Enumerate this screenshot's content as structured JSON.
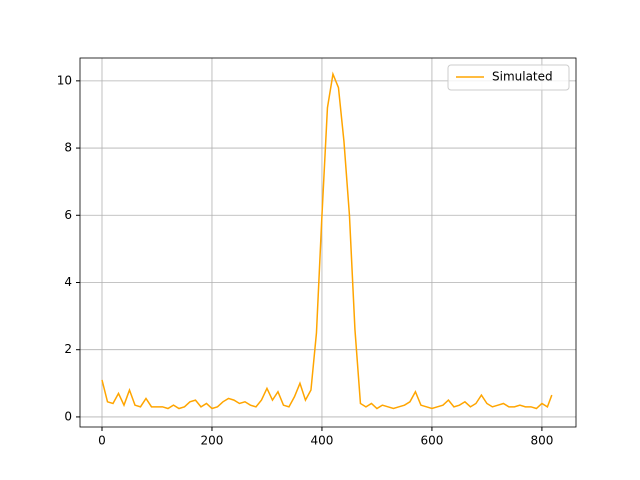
{
  "chart_data": {
    "type": "line",
    "x": [
      0,
      10,
      20,
      30,
      40,
      50,
      60,
      70,
      80,
      90,
      100,
      110,
      120,
      130,
      140,
      150,
      160,
      170,
      180,
      190,
      200,
      210,
      220,
      230,
      240,
      250,
      260,
      270,
      280,
      290,
      300,
      310,
      320,
      330,
      340,
      350,
      360,
      370,
      380,
      390,
      400,
      410,
      420,
      430,
      440,
      450,
      460,
      470,
      480,
      490,
      500,
      510,
      520,
      530,
      540,
      550,
      560,
      570,
      580,
      590,
      600,
      610,
      620,
      630,
      640,
      650,
      660,
      670,
      680,
      690,
      700,
      710,
      720,
      730,
      740,
      750,
      760,
      770,
      780,
      790,
      800,
      810,
      818
    ],
    "series": [
      {
        "name": "Simulated",
        "color": "#ffa500",
        "values": [
          1.1,
          0.45,
          0.4,
          0.7,
          0.35,
          0.8,
          0.35,
          0.3,
          0.55,
          0.3,
          0.3,
          0.3,
          0.25,
          0.35,
          0.25,
          0.3,
          0.45,
          0.5,
          0.3,
          0.4,
          0.25,
          0.3,
          0.45,
          0.55,
          0.5,
          0.4,
          0.45,
          0.35,
          0.3,
          0.5,
          0.85,
          0.5,
          0.75,
          0.35,
          0.3,
          0.6,
          1.0,
          0.5,
          0.8,
          2.5,
          6.0,
          9.2,
          10.2,
          9.8,
          8.2,
          6.0,
          2.6,
          0.4,
          0.3,
          0.4,
          0.25,
          0.35,
          0.3,
          0.25,
          0.3,
          0.35,
          0.45,
          0.75,
          0.35,
          0.3,
          0.25,
          0.3,
          0.35,
          0.5,
          0.3,
          0.35,
          0.45,
          0.3,
          0.4,
          0.65,
          0.4,
          0.3,
          0.35,
          0.4,
          0.3,
          0.3,
          0.35,
          0.3,
          0.3,
          0.25,
          0.4,
          0.3,
          0.65
        ]
      }
    ],
    "xlim": [
      -40,
      862
    ],
    "ylim": [
      -0.3,
      10.68
    ],
    "xticks": [
      0,
      200,
      400,
      600,
      800
    ],
    "yticks": [
      0,
      2,
      4,
      6,
      8,
      10
    ],
    "grid": true,
    "legend": "upper right"
  }
}
